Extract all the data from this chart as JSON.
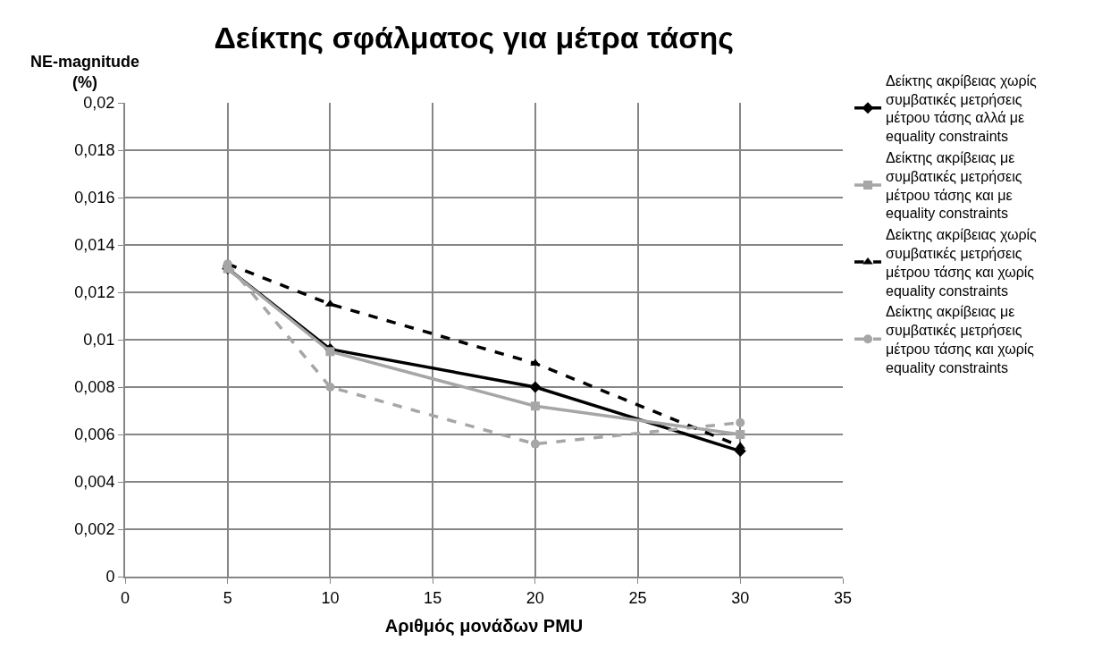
{
  "chart_data": {
    "type": "line",
    "title": "Δείκτης σφάλματος για μέτρα τάσης",
    "xlabel": "Αριθμός μονάδων PMU",
    "ylabel": "NE-magnitude (%)",
    "x": [
      5,
      10,
      20,
      30
    ],
    "series": [
      {
        "name": "Δείκτης ακρίβειας χωρίς συμβατικές μετρήσεις μέτρου τάσης αλλά με equality constraints",
        "color": "#000000",
        "marker": "diamond",
        "line_style": "solid",
        "values": [
          0.013,
          0.0096,
          0.008,
          0.0053
        ]
      },
      {
        "name": "Δείκτης ακρίβειας με συμβατικές μετρήσεις μέτρου τάσης και με equality constraints",
        "color": "#a6a6a6",
        "marker": "square",
        "line_style": "solid",
        "values": [
          0.013,
          0.0095,
          0.0072,
          0.006
        ]
      },
      {
        "name": "Δείκτης ακρίβειας χωρίς συμβατικές μετρήσεις μέτρου τάσης και χωρίς equality constraints",
        "color": "#000000",
        "marker": "triangle",
        "line_style": "dashed",
        "values": [
          0.0132,
          0.0115,
          0.009,
          0.0055
        ]
      },
      {
        "name": "Δείκτης ακρίβειας με συμβατικές μετρήσεις μέτρου τάσης και χωρίς equality constraints",
        "color": "#a6a6a6",
        "marker": "circle",
        "line_style": "dashed",
        "values": [
          0.0132,
          0.008,
          0.0056,
          0.0065
        ]
      }
    ],
    "xlim": [
      0,
      35
    ],
    "xticks": [
      0,
      5,
      10,
      15,
      20,
      25,
      30,
      35
    ],
    "ylim": [
      0,
      0.02
    ],
    "yticks": [
      0,
      {
        "value": 0.002,
        "label": "0,002"
      },
      {
        "value": 0.004,
        "label": "0,004"
      },
      {
        "value": 0.006,
        "label": "0,006"
      },
      {
        "value": 0.008,
        "label": "0,008"
      },
      {
        "value": 0.01,
        "label": "0,01"
      },
      {
        "value": 0.012,
        "label": "0,012"
      },
      {
        "value": 0.014,
        "label": "0,014"
      },
      {
        "value": 0.016,
        "label": "0,016"
      },
      {
        "value": 0.018,
        "label": "0,018"
      },
      {
        "value": 0.02,
        "label": "0,02"
      }
    ],
    "grid": true,
    "legend": "right"
  }
}
